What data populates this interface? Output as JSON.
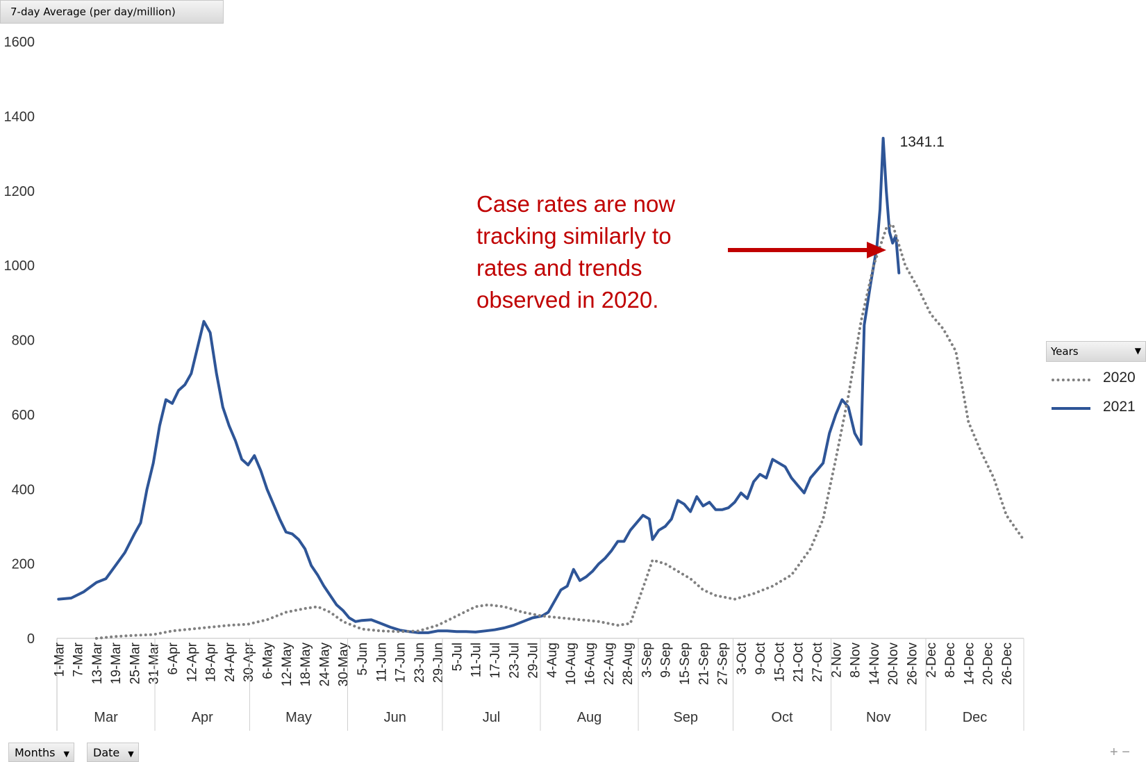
{
  "measure_label": "7-day Average (per day/million)",
  "legend": {
    "title": "Years",
    "items": [
      {
        "name": "2020",
        "color": "#808080",
        "style": "dotted"
      },
      {
        "name": "2021",
        "color": "#2e5597",
        "style": "solid"
      }
    ]
  },
  "filters": {
    "months": "Months",
    "date": "Date"
  },
  "annotation": "Case rates are now tracking similarly to rates and trends observed in 2020.",
  "peak_label": "1341.1",
  "arrow_color": "#c00000",
  "chart_data": {
    "type": "line",
    "ylabel": "7-day Average (per day/million)",
    "ylim": [
      0,
      1600
    ],
    "yticks": [
      0,
      200,
      400,
      600,
      800,
      1000,
      1200,
      1400,
      1600
    ],
    "x_range": [
      "1-Mar",
      "31-Dec"
    ],
    "x_tick_labels": [
      "1-Mar",
      "7-Mar",
      "13-Mar",
      "19-Mar",
      "25-Mar",
      "31-Mar",
      "6-Apr",
      "12-Apr",
      "18-Apr",
      "24-Apr",
      "30-Apr",
      "6-May",
      "12-May",
      "18-May",
      "24-May",
      "30-May",
      "5-Jun",
      "11-Jun",
      "17-Jun",
      "23-Jun",
      "29-Jun",
      "5-Jul",
      "11-Jul",
      "17-Jul",
      "23-Jul",
      "29-Jul",
      "4-Aug",
      "10-Aug",
      "16-Aug",
      "22-Aug",
      "28-Aug",
      "3-Sep",
      "9-Sep",
      "15-Sep",
      "21-Sep",
      "27-Sep",
      "3-Oct",
      "9-Oct",
      "15-Oct",
      "21-Oct",
      "27-Oct",
      "2-Nov",
      "8-Nov",
      "14-Nov",
      "20-Nov",
      "26-Nov",
      "2-Dec",
      "8-Dec",
      "14-Dec",
      "20-Dec",
      "26-Dec"
    ],
    "month_labels": [
      "Mar",
      "Apr",
      "May",
      "Jun",
      "Jul",
      "Aug",
      "Sep",
      "Oct",
      "Nov",
      "Dec"
    ],
    "grid": false,
    "legend_position": "right",
    "series": [
      {
        "name": "2021",
        "points": [
          [
            "1-Mar",
            105
          ],
          [
            "5-Mar",
            108
          ],
          [
            "9-Mar",
            125
          ],
          [
            "13-Mar",
            150
          ],
          [
            "16-Mar",
            160
          ],
          [
            "19-Mar",
            195
          ],
          [
            "22-Mar",
            230
          ],
          [
            "25-Mar",
            280
          ],
          [
            "27-Mar",
            310
          ],
          [
            "29-Mar",
            400
          ],
          [
            "31-Mar",
            470
          ],
          [
            "2-Apr",
            570
          ],
          [
            "4-Apr",
            640
          ],
          [
            "6-Apr",
            630
          ],
          [
            "8-Apr",
            665
          ],
          [
            "10-Apr",
            680
          ],
          [
            "12-Apr",
            710
          ],
          [
            "14-Apr",
            780
          ],
          [
            "16-Apr",
            850
          ],
          [
            "18-Apr",
            820
          ],
          [
            "20-Apr",
            710
          ],
          [
            "22-Apr",
            620
          ],
          [
            "24-Apr",
            570
          ],
          [
            "26-Apr",
            530
          ],
          [
            "28-Apr",
            480
          ],
          [
            "30-Apr",
            465
          ],
          [
            "2-May",
            490
          ],
          [
            "4-May",
            450
          ],
          [
            "6-May",
            400
          ],
          [
            "8-May",
            360
          ],
          [
            "10-May",
            320
          ],
          [
            "12-May",
            285
          ],
          [
            "14-May",
            280
          ],
          [
            "16-May",
            265
          ],
          [
            "18-May",
            240
          ],
          [
            "20-May",
            195
          ],
          [
            "22-May",
            170
          ],
          [
            "24-May",
            140
          ],
          [
            "26-May",
            115
          ],
          [
            "28-May",
            90
          ],
          [
            "30-May",
            75
          ],
          [
            "1-Jun",
            55
          ],
          [
            "3-Jun",
            45
          ],
          [
            "5-Jun",
            48
          ],
          [
            "8-Jun",
            50
          ],
          [
            "11-Jun",
            40
          ],
          [
            "14-Jun",
            30
          ],
          [
            "17-Jun",
            22
          ],
          [
            "20-Jun",
            18
          ],
          [
            "23-Jun",
            15
          ],
          [
            "26-Jun",
            15
          ],
          [
            "29-Jun",
            20
          ],
          [
            "2-Jul",
            20
          ],
          [
            "5-Jul",
            18
          ],
          [
            "8-Jul",
            18
          ],
          [
            "11-Jul",
            17
          ],
          [
            "14-Jul",
            20
          ],
          [
            "17-Jul",
            23
          ],
          [
            "20-Jul",
            28
          ],
          [
            "23-Jul",
            35
          ],
          [
            "26-Jul",
            45
          ],
          [
            "29-Jul",
            55
          ],
          [
            "1-Aug",
            60
          ],
          [
            "3-Aug",
            70
          ],
          [
            "5-Aug",
            100
          ],
          [
            "7-Aug",
            130
          ],
          [
            "9-Aug",
            140
          ],
          [
            "11-Aug",
            185
          ],
          [
            "13-Aug",
            155
          ],
          [
            "15-Aug",
            165
          ],
          [
            "17-Aug",
            180
          ],
          [
            "19-Aug",
            200
          ],
          [
            "21-Aug",
            215
          ],
          [
            "23-Aug",
            235
          ],
          [
            "25-Aug",
            260
          ],
          [
            "27-Aug",
            260
          ],
          [
            "29-Aug",
            290
          ],
          [
            "31-Aug",
            310
          ],
          [
            "2-Sep",
            330
          ],
          [
            "4-Sep",
            320
          ],
          [
            "5-Sep",
            265
          ],
          [
            "7-Sep",
            290
          ],
          [
            "9-Sep",
            300
          ],
          [
            "11-Sep",
            320
          ],
          [
            "13-Sep",
            370
          ],
          [
            "15-Sep",
            360
          ],
          [
            "17-Sep",
            340
          ],
          [
            "19-Sep",
            380
          ],
          [
            "21-Sep",
            355
          ],
          [
            "23-Sep",
            365
          ],
          [
            "25-Sep",
            345
          ],
          [
            "27-Sep",
            345
          ],
          [
            "29-Sep",
            350
          ],
          [
            "1-Oct",
            365
          ],
          [
            "3-Oct",
            390
          ],
          [
            "5-Oct",
            375
          ],
          [
            "7-Oct",
            420
          ],
          [
            "9-Oct",
            440
          ],
          [
            "11-Oct",
            430
          ],
          [
            "13-Oct",
            480
          ],
          [
            "15-Oct",
            470
          ],
          [
            "17-Oct",
            460
          ],
          [
            "19-Oct",
            430
          ],
          [
            "21-Oct",
            410
          ],
          [
            "23-Oct",
            390
          ],
          [
            "25-Oct",
            430
          ],
          [
            "27-Oct",
            450
          ],
          [
            "29-Oct",
            470
          ],
          [
            "31-Oct",
            550
          ],
          [
            "2-Nov",
            600
          ],
          [
            "4-Nov",
            640
          ],
          [
            "6-Nov",
            620
          ],
          [
            "8-Nov",
            550
          ],
          [
            "10-Nov",
            520
          ],
          [
            "11-Nov",
            840
          ],
          [
            "13-Nov",
            950
          ],
          [
            "15-Nov",
            1050
          ],
          [
            "16-Nov",
            1150
          ],
          [
            "17-Nov",
            1341.1
          ],
          [
            "18-Nov",
            1200
          ],
          [
            "19-Nov",
            1090
          ],
          [
            "20-Nov",
            1060
          ],
          [
            "21-Nov",
            1080
          ],
          [
            "22-Nov",
            980
          ]
        ]
      },
      {
        "name": "2020",
        "points": [
          [
            "13-Mar",
            0
          ],
          [
            "19-Mar",
            5
          ],
          [
            "25-Mar",
            8
          ],
          [
            "31-Mar",
            10
          ],
          [
            "6-Apr",
            20
          ],
          [
            "12-Apr",
            25
          ],
          [
            "18-Apr",
            30
          ],
          [
            "24-Apr",
            35
          ],
          [
            "30-Apr",
            38
          ],
          [
            "6-May",
            50
          ],
          [
            "12-May",
            70
          ],
          [
            "18-May",
            80
          ],
          [
            "22-May",
            85
          ],
          [
            "26-May",
            70
          ],
          [
            "30-May",
            45
          ],
          [
            "5-Jun",
            25
          ],
          [
            "11-Jun",
            20
          ],
          [
            "17-Jun",
            18
          ],
          [
            "23-Jun",
            20
          ],
          [
            "29-Jun",
            35
          ],
          [
            "5-Jul",
            60
          ],
          [
            "11-Jul",
            85
          ],
          [
            "15-Jul",
            90
          ],
          [
            "20-Jul",
            85
          ],
          [
            "26-Jul",
            70
          ],
          [
            "1-Aug",
            60
          ],
          [
            "7-Aug",
            55
          ],
          [
            "13-Aug",
            50
          ],
          [
            "19-Aug",
            45
          ],
          [
            "25-Aug",
            35
          ],
          [
            "29-Aug",
            40
          ],
          [
            "3-Sep",
            160
          ],
          [
            "5-Sep",
            210
          ],
          [
            "9-Sep",
            200
          ],
          [
            "13-Sep",
            180
          ],
          [
            "17-Sep",
            160
          ],
          [
            "21-Sep",
            130
          ],
          [
            "25-Sep",
            115
          ],
          [
            "1-Oct",
            105
          ],
          [
            "7-Oct",
            120
          ],
          [
            "13-Oct",
            140
          ],
          [
            "19-Oct",
            170
          ],
          [
            "25-Oct",
            240
          ],
          [
            "29-Oct",
            320
          ],
          [
            "2-Nov",
            480
          ],
          [
            "6-Nov",
            650
          ],
          [
            "10-Nov",
            850
          ],
          [
            "14-Nov",
            1000
          ],
          [
            "18-Nov",
            1100
          ],
          [
            "20-Nov",
            1110
          ],
          [
            "24-Nov",
            1000
          ],
          [
            "28-Nov",
            940
          ],
          [
            "2-Dec",
            870
          ],
          [
            "6-Dec",
            830
          ],
          [
            "10-Dec",
            770
          ],
          [
            "14-Dec",
            580
          ],
          [
            "18-Dec",
            500
          ],
          [
            "22-Dec",
            430
          ],
          [
            "26-Dec",
            330
          ],
          [
            "31-Dec",
            270
          ]
        ]
      }
    ]
  }
}
